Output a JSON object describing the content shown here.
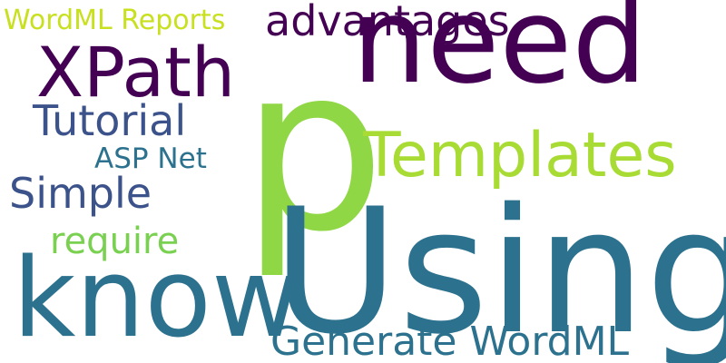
{
  "words": {
    "p": {
      "text": "p",
      "color": "#8fd745"
    },
    "using": {
      "text": "Using",
      "color": "#2c728e"
    },
    "know": {
      "text": "know",
      "color": "#2c728e"
    },
    "need": {
      "text": "need",
      "color": "#440154"
    },
    "xpath": {
      "text": "XPath",
      "color": "#440154"
    },
    "templates": {
      "text": "Templates",
      "color": "#a8db34"
    },
    "advantages": {
      "text": "advantages",
      "color": "#440154"
    },
    "tutorial": {
      "text": "Tutorial",
      "color": "#3b528b"
    },
    "simple": {
      "text": "Simple",
      "color": "#3b528b"
    },
    "generate": {
      "text": "Generate WordML",
      "color": "#2c728e"
    },
    "require": {
      "text": "require",
      "color": "#7ad151"
    },
    "wordml": {
      "text": "WordML Reports",
      "color": "#c8e020"
    },
    "aspnet": {
      "text": "ASP Net",
      "color": "#2c728e"
    }
  }
}
